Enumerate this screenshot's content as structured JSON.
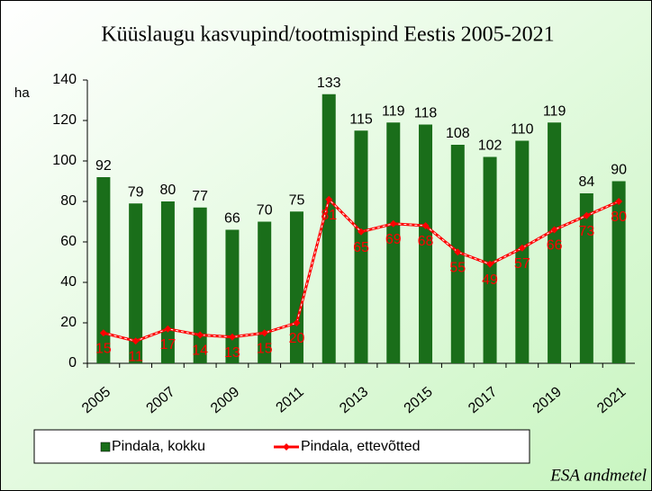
{
  "chart_data": {
    "type": "bar_line",
    "title": "Küüslaugu kasvupind/tootmispind Eestis 2005-2021",
    "y_label": "ha",
    "source": "ESA andmetel",
    "categories": [
      "2005",
      null,
      "2007",
      null,
      "2009",
      null,
      "2011",
      null,
      "2013",
      null,
      "2015",
      null,
      "2017",
      null,
      "2019",
      null,
      "2021"
    ],
    "series": [
      {
        "name": "Pindala, kokku",
        "type": "bar",
        "color": "#1a6e1a",
        "values": [
          92,
          79,
          80,
          77,
          66,
          70,
          75,
          133,
          115,
          119,
          118,
          108,
          102,
          110,
          119,
          84,
          90
        ]
      },
      {
        "name": "Pindala, ettevõtted",
        "type": "line",
        "color": "#ff0000",
        "values": [
          15,
          11,
          17,
          14,
          13,
          15,
          20,
          81,
          65,
          69,
          68,
          55,
          49,
          57,
          66,
          73,
          80
        ]
      }
    ],
    "ylim": [
      0,
      140
    ],
    "yticks": [
      0,
      20,
      40,
      60,
      80,
      100,
      120,
      140
    ]
  }
}
